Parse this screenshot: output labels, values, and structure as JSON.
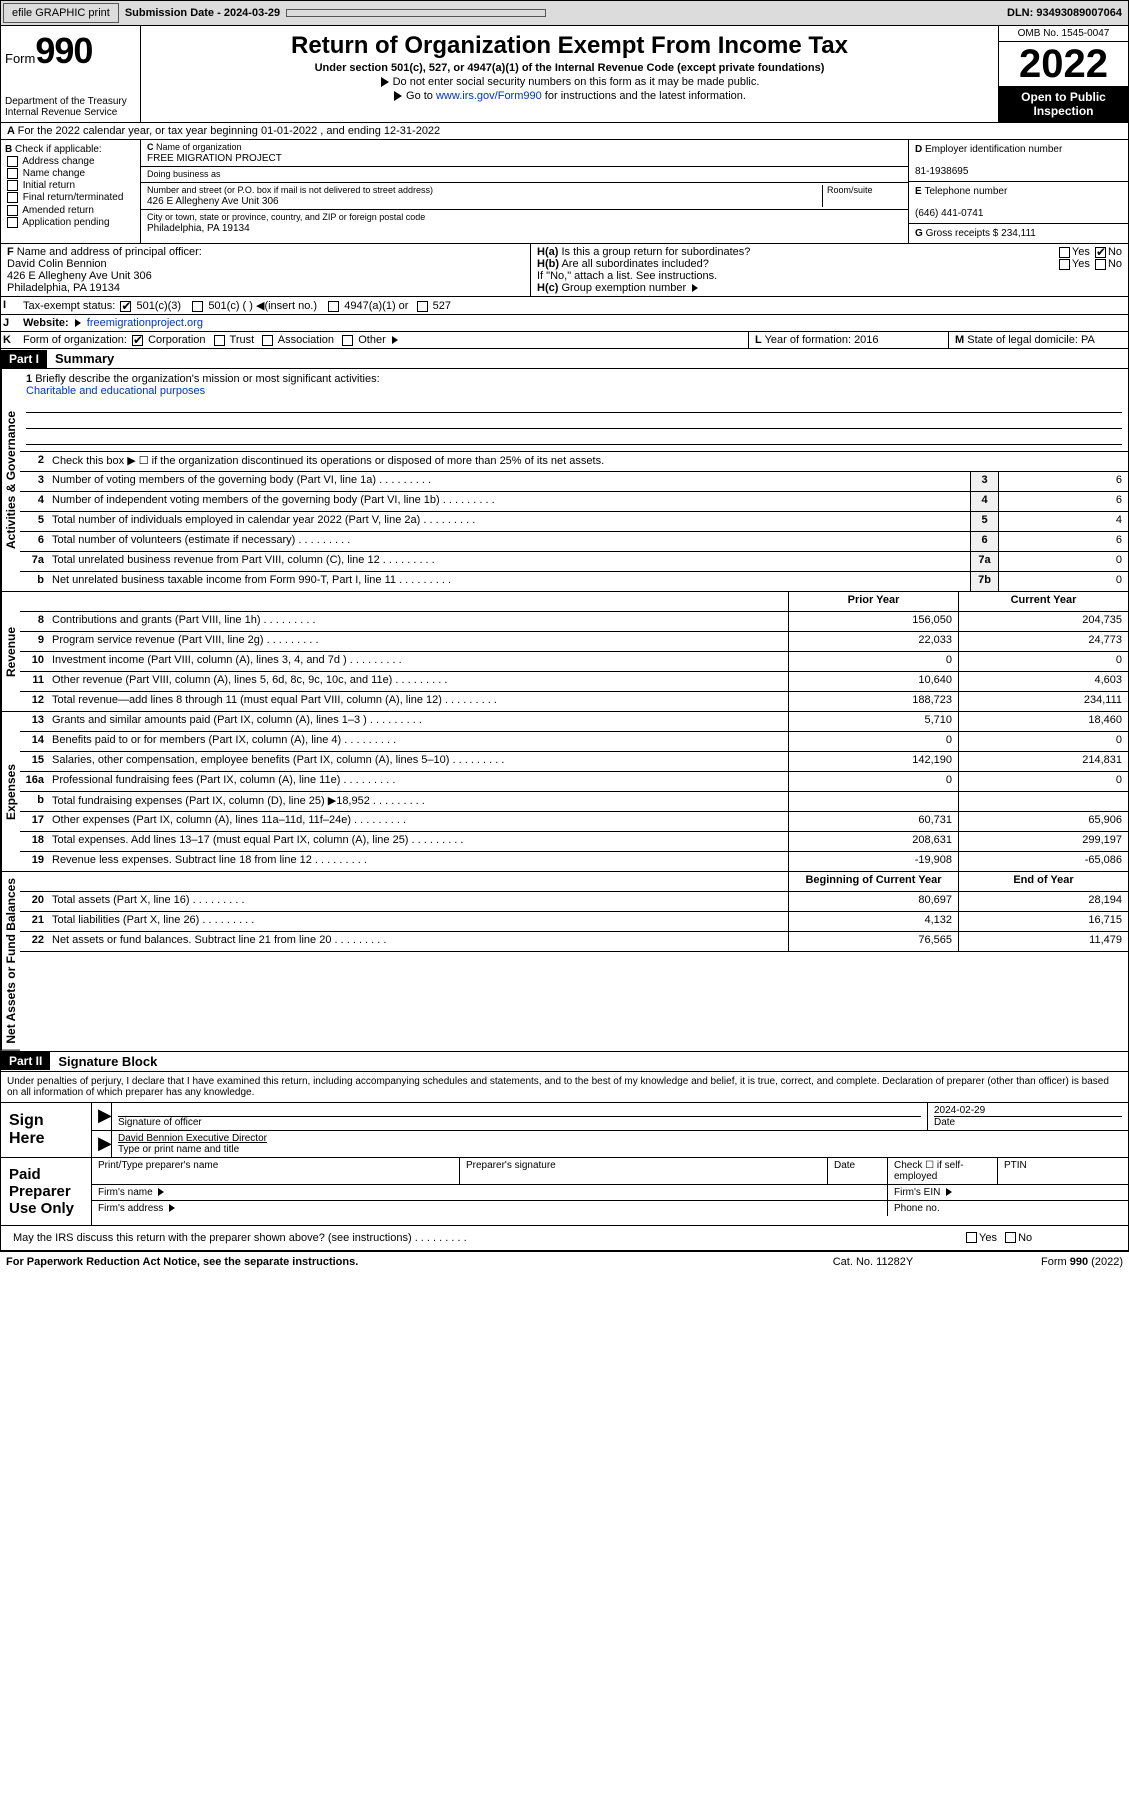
{
  "topbar": {
    "efile_btn": "efile GRAPHIC print",
    "sub_label": "Submission Date - 2024-03-29",
    "dln": "DLN: 93493089007064"
  },
  "header": {
    "form_prefix": "Form",
    "form_num": "990",
    "dept": "Department of the Treasury Internal Revenue Service",
    "title": "Return of Organization Exempt From Income Tax",
    "subtitle": "Under section 501(c), 527, or 4947(a)(1) of the Internal Revenue Code (except private foundations)",
    "note1": "Do not enter social security numbers on this form as it may be made public.",
    "note2_pre": "Go to ",
    "note2_link": "www.irs.gov/Form990",
    "note2_post": " for instructions and the latest information.",
    "omb": "OMB No. 1545-0047",
    "year": "2022",
    "open_pub": "Open to Public Inspection"
  },
  "rowA": "For the 2022 calendar year, or tax year beginning 01-01-2022   , and ending 12-31-2022",
  "colB": {
    "label": "Check if applicable:",
    "items": [
      "Address change",
      "Name change",
      "Initial return",
      "Final return/terminated",
      "Amended return",
      "Application pending"
    ]
  },
  "colC": {
    "name_label": "Name of organization",
    "name": "FREE MIGRATION PROJECT",
    "dba_label": "Doing business as",
    "dba": "",
    "addr_label": "Number and street (or P.O. box if mail is not delivered to street address)",
    "room_label": "Room/suite",
    "addr": "426 E Allegheny Ave Unit 306",
    "city_label": "City or town, state or province, country, and ZIP or foreign postal code",
    "city": "Philadelphia, PA  19134"
  },
  "colD": {
    "ein_label": "Employer identification number",
    "ein": "81-1938695",
    "phone_label": "Telephone number",
    "phone": "(646) 441-0741",
    "gross_label": "Gross receipts $",
    "gross": "234,111"
  },
  "rowF": {
    "label": "Name and address of principal officer:",
    "name": "David Colin Bennion",
    "addr1": "426 E Allegheny Ave Unit 306",
    "addr2": "Philadelphia, PA  19134"
  },
  "rowH": {
    "ha": "Is this a group return for subordinates?",
    "hb": "Are all subordinates included?",
    "hb_note": "If \"No,\" attach a list. See instructions.",
    "hc": "Group exemption number"
  },
  "rowI": {
    "label": "Tax-exempt status:",
    "opt1": "501(c)(3)",
    "opt2": "501(c) (  )",
    "opt2_note": "(insert no.)",
    "opt3": "4947(a)(1) or",
    "opt4": "527"
  },
  "rowJ": {
    "label": "Website:",
    "val": "freemigrationproject.org"
  },
  "rowK": {
    "label": "Form of organization:",
    "opts": [
      "Corporation",
      "Trust",
      "Association",
      "Other"
    ]
  },
  "rowL": {
    "label": "Year of formation:",
    "val": "2016"
  },
  "rowM": {
    "label": "State of legal domicile:",
    "val": "PA"
  },
  "part1": {
    "head": "Part I",
    "title": "Summary"
  },
  "summary": {
    "q1": "Briefly describe the organization's mission or most significant activities:",
    "q1_ans": "Charitable and educational purposes",
    "q2": "Check this box ▶ ☐ if the organization discontinued its operations or disposed of more than 25% of its net assets.",
    "lines_gov": [
      {
        "n": "3",
        "d": "Number of voting members of the governing body (Part VI, line 1a)",
        "b": "3",
        "v": "6"
      },
      {
        "n": "4",
        "d": "Number of independent voting members of the governing body (Part VI, line 1b)",
        "b": "4",
        "v": "6"
      },
      {
        "n": "5",
        "d": "Total number of individuals employed in calendar year 2022 (Part V, line 2a)",
        "b": "5",
        "v": "4"
      },
      {
        "n": "6",
        "d": "Total number of volunteers (estimate if necessary)",
        "b": "6",
        "v": "6"
      },
      {
        "n": "7a",
        "d": "Total unrelated business revenue from Part VIII, column (C), line 12",
        "b": "7a",
        "v": "0"
      },
      {
        "n": "b",
        "d": "Net unrelated business taxable income from Form 990-T, Part I, line 11",
        "b": "7b",
        "v": "0"
      }
    ],
    "hdr_prior": "Prior Year",
    "hdr_curr": "Current Year",
    "lines_rev": [
      {
        "n": "8",
        "d": "Contributions and grants (Part VIII, line 1h)",
        "p": "156,050",
        "c": "204,735"
      },
      {
        "n": "9",
        "d": "Program service revenue (Part VIII, line 2g)",
        "p": "22,033",
        "c": "24,773"
      },
      {
        "n": "10",
        "d": "Investment income (Part VIII, column (A), lines 3, 4, and 7d )",
        "p": "0",
        "c": "0"
      },
      {
        "n": "11",
        "d": "Other revenue (Part VIII, column (A), lines 5, 6d, 8c, 9c, 10c, and 11e)",
        "p": "10,640",
        "c": "4,603"
      },
      {
        "n": "12",
        "d": "Total revenue—add lines 8 through 11 (must equal Part VIII, column (A), line 12)",
        "p": "188,723",
        "c": "234,111"
      }
    ],
    "lines_exp": [
      {
        "n": "13",
        "d": "Grants and similar amounts paid (Part IX, column (A), lines 1–3 )",
        "p": "5,710",
        "c": "18,460"
      },
      {
        "n": "14",
        "d": "Benefits paid to or for members (Part IX, column (A), line 4)",
        "p": "0",
        "c": "0"
      },
      {
        "n": "15",
        "d": "Salaries, other compensation, employee benefits (Part IX, column (A), lines 5–10)",
        "p": "142,190",
        "c": "214,831"
      },
      {
        "n": "16a",
        "d": "Professional fundraising fees (Part IX, column (A), line 11e)",
        "p": "0",
        "c": "0"
      },
      {
        "n": "b",
        "d": "Total fundraising expenses (Part IX, column (D), line 25) ▶18,952",
        "p": "shade",
        "c": "shade"
      },
      {
        "n": "17",
        "d": "Other expenses (Part IX, column (A), lines 11a–11d, 11f–24e)",
        "p": "60,731",
        "c": "65,906"
      },
      {
        "n": "18",
        "d": "Total expenses. Add lines 13–17 (must equal Part IX, column (A), line 25)",
        "p": "208,631",
        "c": "299,197"
      },
      {
        "n": "19",
        "d": "Revenue less expenses. Subtract line 18 from line 12",
        "p": "-19,908",
        "c": "-65,086"
      }
    ],
    "hdr_boy": "Beginning of Current Year",
    "hdr_eoy": "End of Year",
    "lines_net": [
      {
        "n": "20",
        "d": "Total assets (Part X, line 16)",
        "p": "80,697",
        "c": "28,194"
      },
      {
        "n": "21",
        "d": "Total liabilities (Part X, line 26)",
        "p": "4,132",
        "c": "16,715"
      },
      {
        "n": "22",
        "d": "Net assets or fund balances. Subtract line 21 from line 20",
        "p": "76,565",
        "c": "11,479"
      }
    ]
  },
  "vtabs": {
    "gov": "Activities & Governance",
    "rev": "Revenue",
    "exp": "Expenses",
    "net": "Net Assets or Fund Balances"
  },
  "part2": {
    "head": "Part II",
    "title": "Signature Block"
  },
  "penalty": "Under penalties of perjury, I declare that I have examined this return, including accompanying schedules and statements, and to the best of my knowledge and belief, it is true, correct, and complete. Declaration of preparer (other than officer) is based on all information of which preparer has any knowledge.",
  "sign": {
    "here": "Sign Here",
    "sig_officer": "Signature of officer",
    "date_label": "Date",
    "date": "2024-02-29",
    "name": "David Bennion  Executive Director",
    "name_label": "Type or print name and title"
  },
  "paid": {
    "label": "Paid Preparer Use Only",
    "r1": [
      "Print/Type preparer's name",
      "Preparer's signature",
      "Date",
      "Check ☐ if self-employed",
      "PTIN"
    ],
    "r2_l": "Firm's name",
    "r2_r": "Firm's EIN",
    "r3_l": "Firm's address",
    "r3_r": "Phone no."
  },
  "discuss": "May the IRS discuss this return with the preparer shown above? (see instructions)",
  "footer": {
    "l": "For Paperwork Reduction Act Notice, see the separate instructions.",
    "c": "Cat. No. 11282Y",
    "r": "Form 990 (2022)"
  }
}
